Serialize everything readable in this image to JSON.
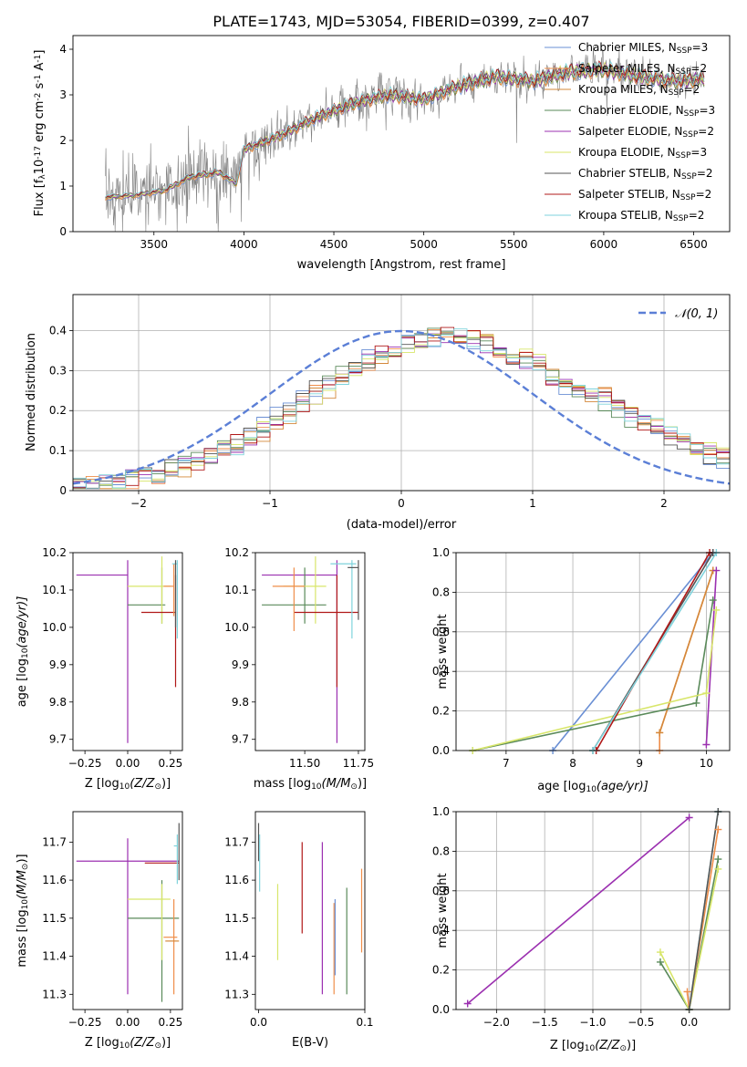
{
  "figure_title": "PLATE=1743, MJD=53054, FIBERID=0399, z=0.407",
  "models": [
    {
      "name": "Chabrier MILES",
      "nssp": "3",
      "color": "#6a8fd4"
    },
    {
      "name": "Salpeter MILES",
      "nssp": "2",
      "color": "#ef8e4a"
    },
    {
      "name": "Kroupa MILES",
      "nssp": "2",
      "color": "#d4883a"
    },
    {
      "name": "Chabrier ELODIE",
      "nssp": "3",
      "color": "#5a8a5a"
    },
    {
      "name": "Salpeter ELODIE",
      "nssp": "2",
      "color": "#9b30b0"
    },
    {
      "name": "Kroupa ELODIE",
      "nssp": "3",
      "color": "#d8e66a"
    },
    {
      "name": "Chabrier STELIB",
      "nssp": "2",
      "color": "#555555"
    },
    {
      "name": "Salpeter STELIB",
      "nssp": "2",
      "color": "#b01818"
    },
    {
      "name": "Kroupa STELIB",
      "nssp": "2",
      "color": "#7fd3dc"
    }
  ],
  "legend_suffix": "N",
  "legend_sub": "SSP",
  "chart_data": [
    {
      "id": "spectrum",
      "type": "line",
      "xlabel": "wavelength [Angstrom, rest frame]",
      "ylabel": "Flux [f",
      "ylabel_parts": [
        "Flux [f",
        "λ",
        "10",
        "-17",
        " erg cm",
        "-2",
        " s",
        "-1",
        " A",
        "-1",
        "]"
      ],
      "xlim": [
        3050,
        6700
      ],
      "ylim": [
        0,
        4.3
      ],
      "xticks": [
        3500,
        4000,
        4500,
        5000,
        5500,
        6000,
        6500
      ],
      "yticks": [
        0,
        1,
        2,
        3,
        4
      ],
      "data_color": "#808080",
      "data_xrange": [
        3230,
        6560
      ],
      "model_anchor_x": [
        3230,
        3400,
        3560,
        3700,
        3860,
        3960,
        4000,
        4200,
        4400,
        4600,
        4800,
        5000,
        5200,
        5400,
        5600,
        5800,
        6000,
        6200,
        6400,
        6550
      ],
      "model_anchor_y": [
        0.75,
        0.8,
        0.9,
        1.2,
        1.3,
        1.05,
        1.8,
        2.1,
        2.5,
        2.8,
        3.0,
        2.9,
        3.2,
        3.4,
        3.3,
        3.5,
        3.55,
        3.4,
        3.3,
        3.35
      ],
      "legend_position": "upper-right"
    },
    {
      "id": "residuals",
      "type": "histogram",
      "xlabel": "(data-model)/error",
      "ylabel": "Normed distribution",
      "xlim": [
        -2.5,
        2.5
      ],
      "ylim": [
        0,
        0.49
      ],
      "xticks": [
        -2,
        -1,
        0,
        1,
        2
      ],
      "yticks": [
        0.0,
        0.1,
        0.2,
        0.3,
        0.4
      ],
      "bin_width": 0.1,
      "reference_curve": "𝒩(0, 1)",
      "reference_color": "#5b7fd6",
      "grid": true,
      "legend_position": "upper-right"
    },
    {
      "id": "age_vs_z",
      "type": "errorbar",
      "xlabel": "Z [log",
      "xlabel_parts": [
        "Z [log",
        "10",
        "(Z/Z",
        "⊙",
        ")]"
      ],
      "ylabel_parts": [
        "age  [log",
        "10",
        "(age/yr)]"
      ],
      "xlim": [
        -0.32,
        0.32
      ],
      "ylim": [
        9.67,
        10.2
      ],
      "xticks": [
        -0.25,
        0.0,
        0.25
      ],
      "xtick_labels": [
        "−0.25",
        "0.00",
        "0.25"
      ],
      "yticks": [
        9.7,
        9.8,
        9.9,
        10.0,
        10.1,
        10.2
      ],
      "ytick_labels": [
        "9.7",
        "9.8",
        "9.9",
        "10.0",
        "10.1",
        "10.2"
      ],
      "points": [
        {
          "model": 4,
          "x": 0.0,
          "y": 10.14,
          "xerr": [
            0.3,
            0.0
          ],
          "yerr": [
            0.45,
            0.04
          ]
        },
        {
          "model": 3,
          "x": 0.2,
          "y": 10.06,
          "xerr": [
            0.2,
            0.02
          ],
          "yerr": [
            0.05,
            0.1
          ]
        },
        {
          "model": 5,
          "x": 0.2,
          "y": 10.11,
          "xerr": [
            0.2,
            0.05
          ],
          "yerr": [
            0.1,
            0.08
          ]
        },
        {
          "model": 7,
          "x": 0.28,
          "y": 10.04,
          "xerr": [
            0.2,
            0.0
          ],
          "yerr": [
            0.2,
            0.1
          ]
        },
        {
          "model": 1,
          "x": 0.27,
          "y": 10.11,
          "xerr": [
            0.06,
            0.0
          ],
          "yerr": [
            0.08,
            0.06
          ]
        },
        {
          "model": 8,
          "x": 0.29,
          "y": 10.17,
          "xerr": [
            0.03,
            0.0
          ],
          "yerr": [
            0.2,
            0.01
          ]
        },
        {
          "model": 6,
          "x": 0.28,
          "y": 10.16,
          "xerr": [
            0.0,
            0.0
          ],
          "yerr": [
            0.16,
            0.02
          ]
        }
      ]
    },
    {
      "id": "age_vs_mass",
      "type": "errorbar",
      "xlabel_parts": [
        "mass [log",
        "10",
        "(M/M",
        "⊙",
        ")]"
      ],
      "xlim": [
        11.27,
        11.78
      ],
      "ylim": [
        9.67,
        10.2
      ],
      "xticks": [
        11.5,
        11.75
      ],
      "xtick_labels": [
        "11.50",
        "11.75"
      ],
      "yticks": [
        9.7,
        9.8,
        9.9,
        10.0,
        10.1,
        10.2
      ],
      "ytick_labels": [
        "9.7",
        "9.8",
        "9.9",
        "10.0",
        "10.1",
        "10.2"
      ],
      "points": [
        {
          "model": 4,
          "x": 11.65,
          "y": 10.14,
          "xerr": [
            0.35,
            0.0
          ],
          "yerr": [
            0.45,
            0.04
          ]
        },
        {
          "model": 3,
          "x": 11.5,
          "y": 10.06,
          "xerr": [
            0.2,
            0.1
          ],
          "yerr": [
            0.05,
            0.1
          ]
        },
        {
          "model": 5,
          "x": 11.55,
          "y": 10.11,
          "xerr": [
            0.15,
            0.05
          ],
          "yerr": [
            0.1,
            0.08
          ]
        },
        {
          "model": 7,
          "x": 11.65,
          "y": 10.04,
          "xerr": [
            0.2,
            0.1
          ],
          "yerr": [
            0.2,
            0.1
          ]
        },
        {
          "model": 1,
          "x": 11.45,
          "y": 10.11,
          "xerr": [
            0.1,
            0.05
          ],
          "yerr": [
            0.12,
            0.05
          ]
        },
        {
          "model": 8,
          "x": 11.72,
          "y": 10.17,
          "xerr": [
            0.1,
            0.02
          ],
          "yerr": [
            0.2,
            0.01
          ]
        },
        {
          "model": 6,
          "x": 11.75,
          "y": 10.16,
          "xerr": [
            0.05,
            0.0
          ],
          "yerr": [
            0.14,
            0.02
          ]
        }
      ]
    },
    {
      "id": "weight_vs_age",
      "type": "line",
      "xlabel_parts": [
        "age  [log",
        "10",
        "(age/yr)]"
      ],
      "ylabel": "mass weight",
      "xlim": [
        6.25,
        10.35
      ],
      "ylim": [
        0,
        1.0
      ],
      "xticks": [
        7,
        8,
        9,
        10
      ],
      "yticks": [
        0.0,
        0.2,
        0.4,
        0.6,
        0.8,
        1.0
      ],
      "ytick_labels": [
        "0.0",
        "0.2",
        "0.4",
        "0.6",
        "0.8",
        "1.0"
      ],
      "grid": true,
      "series": [
        {
          "model": 0,
          "x": [
            7.7,
            10.1
          ],
          "y": [
            0.0,
            1.0
          ]
        },
        {
          "model": 1,
          "x": [
            9.3,
            9.3,
            10.1
          ],
          "y": [
            0.0,
            0.09,
            0.91
          ]
        },
        {
          "model": 2,
          "x": [
            9.3,
            10.1
          ],
          "y": [
            0.09,
            0.91
          ]
        },
        {
          "model": 3,
          "x": [
            6.5,
            9.85,
            10.1
          ],
          "y": [
            0.0,
            0.24,
            0.76
          ]
        },
        {
          "model": 4,
          "x": [
            10.0,
            10.15
          ],
          "y": [
            0.03,
            0.91
          ]
        },
        {
          "model": 5,
          "x": [
            6.5,
            10.0,
            10.15
          ],
          "y": [
            0.0,
            0.29,
            0.71
          ]
        },
        {
          "model": 6,
          "x": [
            8.3,
            10.1
          ],
          "y": [
            0.0,
            1.0
          ]
        },
        {
          "model": 7,
          "x": [
            8.35,
            10.05
          ],
          "y": [
            0.0,
            1.0
          ]
        },
        {
          "model": 8,
          "x": [
            8.3,
            10.15
          ],
          "y": [
            0.0,
            1.0
          ]
        }
      ]
    },
    {
      "id": "mass_vs_z",
      "type": "errorbar",
      "xlabel_parts": [
        "Z [log",
        "10",
        "(Z/Z",
        "⊙",
        ")]"
      ],
      "ylabel_parts": [
        "mass [log",
        "10",
        "(M/M",
        "⊙",
        ")]"
      ],
      "xlim": [
        -0.32,
        0.32
      ],
      "ylim": [
        11.26,
        11.78
      ],
      "xticks": [
        -0.25,
        0.0,
        0.25
      ],
      "xtick_labels": [
        "−0.25",
        "0.00",
        "0.25"
      ],
      "yticks": [
        11.3,
        11.4,
        11.5,
        11.6,
        11.7
      ],
      "ytick_labels": [
        "11.3",
        "11.4",
        "11.5",
        "11.6",
        "11.7"
      ],
      "points": [
        {
          "model": 4,
          "x": 0.0,
          "y": 11.65,
          "xerr": [
            0.3,
            0.3
          ],
          "yerr": [
            0.35,
            0.06
          ]
        },
        {
          "model": 7,
          "x": 0.1,
          "y": 11.645,
          "xerr": [
            0.0,
            0.2
          ],
          "yerr": [
            0.0,
            0.0
          ]
        },
        {
          "model": 3,
          "x": 0.2,
          "y": 11.5,
          "xerr": [
            0.2,
            0.1
          ],
          "yerr": [
            0.22,
            0.1
          ]
        },
        {
          "model": 5,
          "x": 0.2,
          "y": 11.55,
          "xerr": [
            0.2,
            0.05
          ],
          "yerr": [
            0.16,
            0.04
          ]
        },
        {
          "model": 1,
          "x": 0.27,
          "y": 11.45,
          "xerr": [
            0.06,
            0.02
          ],
          "yerr": [
            0.15,
            0.1
          ]
        },
        {
          "model": 2,
          "x": 0.25,
          "y": 11.44,
          "xerr": [
            0.03,
            0.05
          ],
          "yerr": [
            0.0,
            0.0
          ]
        },
        {
          "model": 8,
          "x": 0.29,
          "y": 11.69,
          "xerr": [
            0.02,
            0.0
          ],
          "yerr": [
            0.1,
            0.03
          ]
        },
        {
          "model": 6,
          "x": 0.3,
          "y": 11.7,
          "xerr": [
            0.0,
            0.0
          ],
          "yerr": [
            0.1,
            0.05
          ]
        }
      ]
    },
    {
      "id": "mass_vs_ebv",
      "type": "errorbar",
      "xlabel": "E(B-V)",
      "xlim": [
        -0.003,
        0.1
      ],
      "ylim": [
        11.26,
        11.78
      ],
      "xticks": [
        0.0,
        0.1
      ],
      "xtick_labels": [
        "0.0",
        "0.1"
      ],
      "yticks": [
        11.3,
        11.4,
        11.5,
        11.6,
        11.7
      ],
      "ytick_labels": [
        "11.3",
        "11.4",
        "11.5",
        "11.6",
        "11.7"
      ],
      "points": [
        {
          "model": 6,
          "x": 0.0,
          "y": 11.7,
          "xerr": [
            0,
            0
          ],
          "yerr": [
            0.05,
            0.05
          ]
        },
        {
          "model": 8,
          "x": 0.001,
          "y": 11.65,
          "xerr": [
            0,
            0
          ],
          "yerr": [
            0.08,
            0.07
          ]
        },
        {
          "model": 5,
          "x": 0.018,
          "y": 11.49,
          "xerr": [
            0,
            0
          ],
          "yerr": [
            0.1,
            0.1
          ]
        },
        {
          "model": 7,
          "x": 0.041,
          "y": 11.58,
          "xerr": [
            0,
            0
          ],
          "yerr": [
            0.12,
            0.12
          ]
        },
        {
          "model": 4,
          "x": 0.06,
          "y": 11.5,
          "xerr": [
            0,
            0
          ],
          "yerr": [
            0.2,
            0.2
          ]
        },
        {
          "model": 1,
          "x": 0.071,
          "y": 11.42,
          "xerr": [
            0,
            0
          ],
          "yerr": [
            0.12,
            0.12
          ]
        },
        {
          "model": 0,
          "x": 0.072,
          "y": 11.45,
          "xerr": [
            0,
            0
          ],
          "yerr": [
            0.1,
            0.1
          ]
        },
        {
          "model": 3,
          "x": 0.083,
          "y": 11.44,
          "xerr": [
            0,
            0
          ],
          "yerr": [
            0.14,
            0.14
          ]
        },
        {
          "model": 1,
          "x": 0.097,
          "y": 11.52,
          "xerr": [
            0,
            0
          ],
          "yerr": [
            0.11,
            0.11
          ]
        }
      ]
    },
    {
      "id": "weight_vs_z",
      "type": "line",
      "xlabel_parts": [
        "Z [log",
        "10",
        "(Z/Z",
        "⊙",
        ")]"
      ],
      "ylabel": "mass weight",
      "xlim": [
        -2.42,
        0.42
      ],
      "ylim": [
        0,
        1.0
      ],
      "xticks": [
        -2.0,
        -1.5,
        -1.0,
        -0.5,
        0.0
      ],
      "xtick_labels": [
        "−2.0",
        "−1.5",
        "−1.0",
        "−0.5",
        "0.0"
      ],
      "yticks": [
        0.0,
        0.2,
        0.4,
        0.6,
        0.8,
        1.0
      ],
      "ytick_labels": [
        "0.0",
        "0.2",
        "0.4",
        "0.6",
        "0.8",
        "1.0"
      ],
      "grid": true,
      "series": [
        {
          "model": 4,
          "x": [
            -2.3,
            0.0
          ],
          "y": [
            0.03,
            0.97
          ]
        },
        {
          "model": 3,
          "x": [
            -0.3,
            0.0,
            0.3
          ],
          "y": [
            0.24,
            0.0,
            0.76
          ]
        },
        {
          "model": 5,
          "x": [
            -0.3,
            0.0,
            0.3
          ],
          "y": [
            0.29,
            0.0,
            0.71
          ]
        },
        {
          "model": 1,
          "x": [
            -0.02,
            0.0,
            0.3
          ],
          "y": [
            0.09,
            0.0,
            0.91
          ]
        },
        {
          "model": 8,
          "x": [
            0.0,
            0.3
          ],
          "y": [
            0.0,
            1.0
          ]
        },
        {
          "model": 6,
          "x": [
            0.0,
            0.3
          ],
          "y": [
            0.0,
            1.0
          ]
        }
      ]
    }
  ]
}
